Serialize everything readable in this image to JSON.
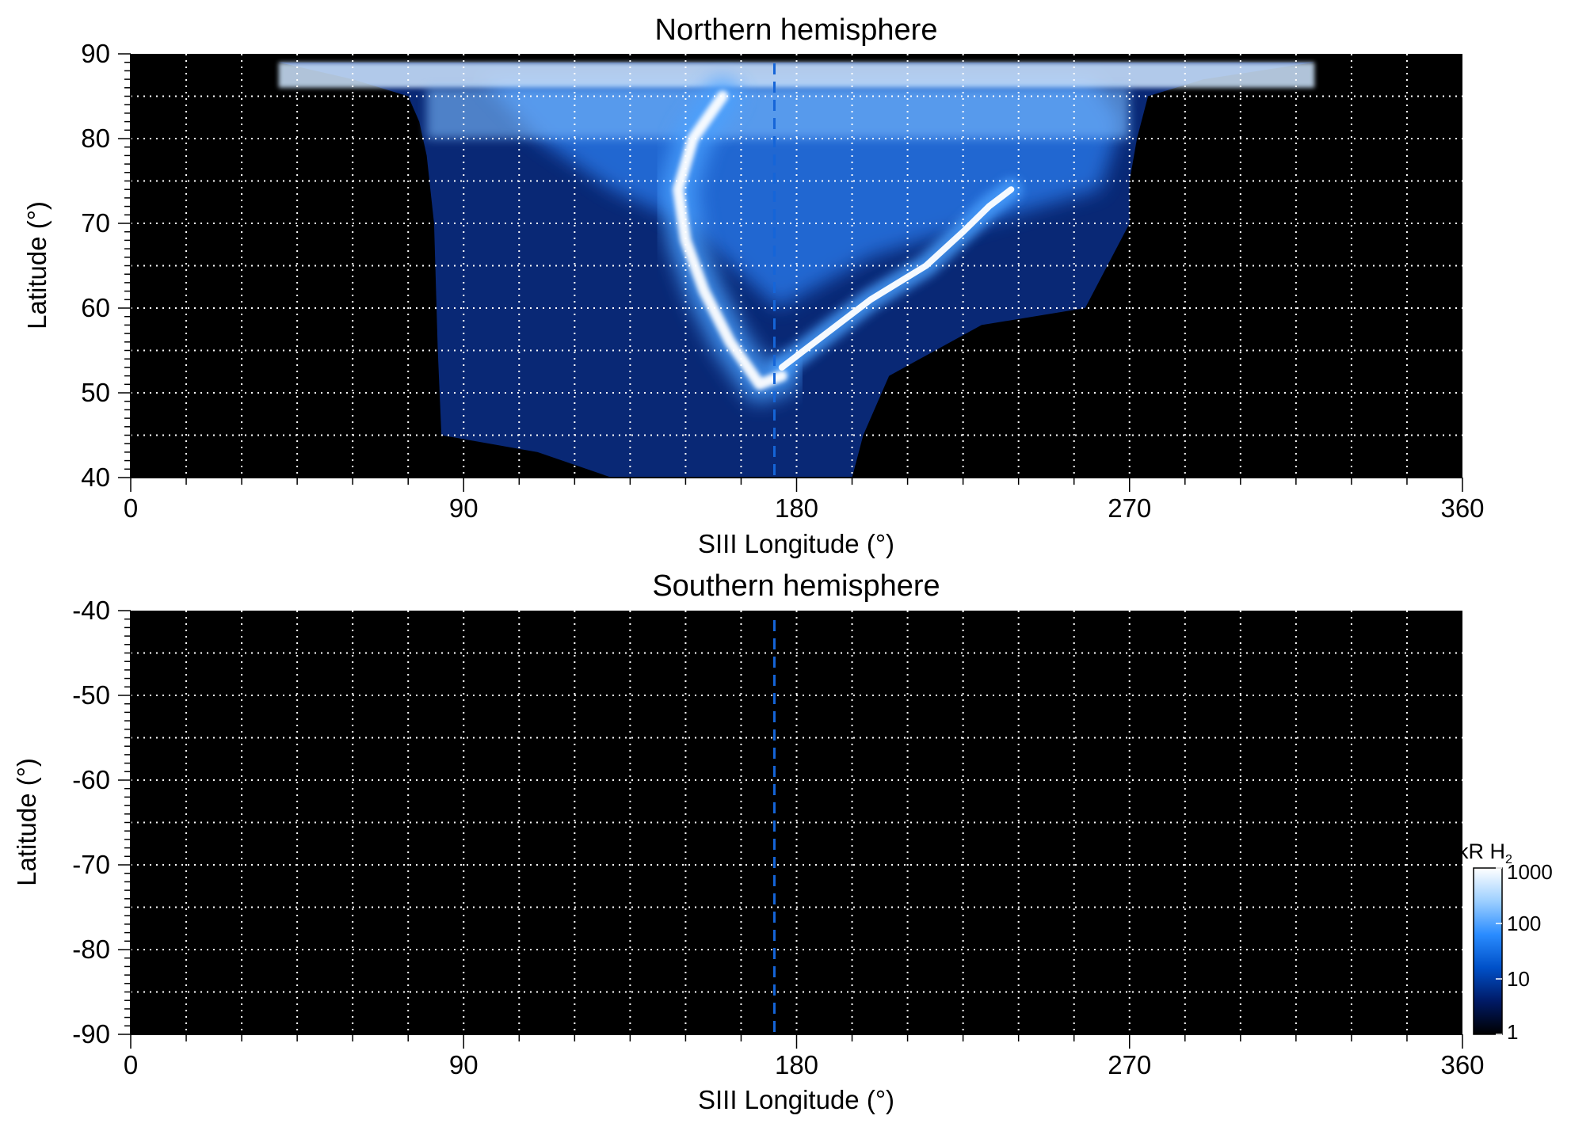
{
  "chart_data": [
    {
      "type": "heatmap",
      "title": "Northern hemisphere",
      "xlabel": "SIII Longitude (°)",
      "ylabel": "Latitude (°)",
      "xlim": [
        0,
        360
      ],
      "ylim": [
        40,
        90
      ],
      "x_ticks": [
        0,
        90,
        180,
        270,
        360
      ],
      "x_tick_labels": [
        "0",
        "90",
        "180",
        "270",
        "360"
      ],
      "y_ticks": [
        40,
        50,
        60,
        70,
        80,
        90
      ],
      "y_tick_labels": [
        "40",
        "50",
        "60",
        "70",
        "80",
        "90"
      ],
      "grid": true,
      "grid_x_step": 15,
      "grid_y_step": 5,
      "reference_line_longitude": 174,
      "reference_line_color": "#1565d8",
      "background": "#000000",
      "main_oval": {
        "west_branch": [
          [
            160,
            85
          ],
          [
            152,
            80
          ],
          [
            148,
            74
          ],
          [
            150,
            68
          ],
          [
            155,
            62
          ],
          [
            162,
            56
          ],
          [
            170,
            51
          ],
          [
            176,
            52
          ]
        ],
        "east_branch": [
          [
            176,
            53
          ],
          [
            185,
            56
          ],
          [
            200,
            61
          ],
          [
            215,
            65
          ],
          [
            225,
            69
          ],
          [
            232,
            72
          ],
          [
            238,
            74
          ]
        ]
      },
      "coverage_region": {
        "north_edge_lat": 89,
        "west_boundary": [
          [
            40,
            89
          ],
          [
            60,
            87
          ],
          [
            75,
            85
          ],
          [
            78,
            82
          ],
          [
            80,
            78
          ],
          [
            82,
            70
          ],
          [
            83,
            55
          ],
          [
            84,
            45
          ]
        ],
        "east_boundary": [
          [
            320,
            89
          ],
          [
            290,
            87
          ],
          [
            275,
            85
          ],
          [
            272,
            80
          ],
          [
            270,
            75
          ],
          [
            270,
            70
          ]
        ],
        "south_edge": [
          [
            84,
            45
          ],
          [
            110,
            43
          ],
          [
            130,
            40
          ],
          [
            195,
            40
          ],
          [
            198,
            45
          ],
          [
            205,
            52
          ],
          [
            230,
            58
          ],
          [
            258,
            60
          ]
        ]
      }
    },
    {
      "type": "heatmap",
      "title": "Southern hemisphere",
      "xlabel": "SIII Longitude (°)",
      "ylabel": "Latitude (°)",
      "xlim": [
        0,
        360
      ],
      "ylim": [
        -90,
        -40
      ],
      "x_ticks": [
        0,
        90,
        180,
        270,
        360
      ],
      "x_tick_labels": [
        "0",
        "90",
        "180",
        "270",
        "360"
      ],
      "y_ticks": [
        -90,
        -80,
        -70,
        -60,
        -50,
        -40
      ],
      "y_tick_labels": [
        "-90",
        "-80",
        "-70",
        "-60",
        "-50",
        "-40"
      ],
      "grid": true,
      "grid_x_step": 15,
      "grid_y_step": 5,
      "reference_line_longitude": 174,
      "reference_line_color": "#1565d8",
      "background": "#000000"
    }
  ],
  "colorbar": {
    "label_main": "kR H",
    "label_sub": "2",
    "scale": "log",
    "range": [
      1,
      1000
    ],
    "ticks": [
      1,
      10,
      100,
      1000
    ],
    "tick_labels": [
      "1",
      "10",
      "100",
      "1000"
    ],
    "colors": [
      "#000000",
      "#001a66",
      "#0050c8",
      "#2a8cff",
      "#9ccfff",
      "#ffffff"
    ]
  }
}
